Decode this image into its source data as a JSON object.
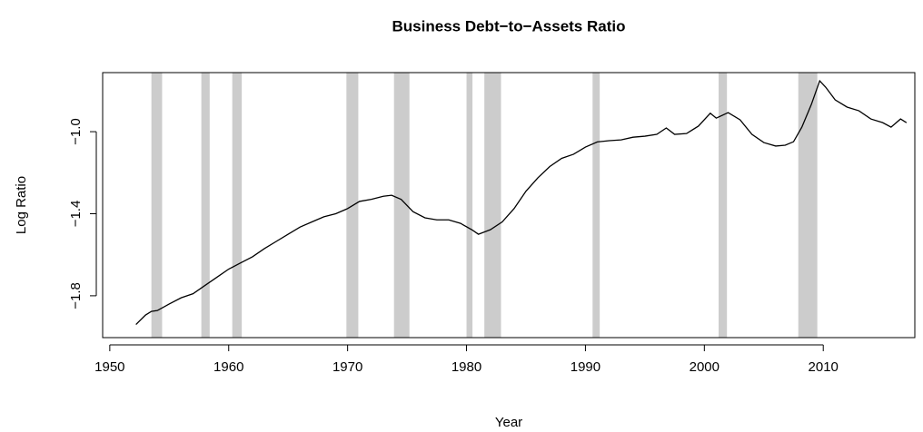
{
  "chart_data": {
    "type": "line",
    "title": "Business Debt−to−Assets Ratio",
    "x_label": "Year",
    "y_label": "Log Ratio",
    "xlim": [
      1949.4,
      2017.7
    ],
    "ylim": [
      -2.004,
      -0.712
    ],
    "xticks": [
      1950,
      1960,
      1970,
      1980,
      1990,
      2000,
      2010
    ],
    "yticks": [
      {
        "value": -1.8,
        "label": "−1.8"
      },
      {
        "value": -1.4,
        "label": "−1.4"
      },
      {
        "value": -1.0,
        "label": "−1.0"
      }
    ],
    "recessions": [
      [
        1953.5,
        1954.4
      ],
      [
        1957.7,
        1958.4
      ],
      [
        1960.3,
        1961.1
      ],
      [
        1969.9,
        1970.9
      ],
      [
        1973.9,
        1975.2
      ],
      [
        1980.0,
        1980.5
      ],
      [
        1981.5,
        1982.9
      ],
      [
        1990.6,
        1991.2
      ],
      [
        2001.2,
        2001.9
      ],
      [
        2007.9,
        2009.5
      ]
    ],
    "recession_color": "#cccccc",
    "x": [
      1952.2,
      1953,
      1953.5,
      1954,
      1955,
      1956,
      1957,
      1958,
      1959,
      1960,
      1961,
      1962,
      1963,
      1964,
      1965,
      1966,
      1967,
      1968,
      1969,
      1970,
      1971,
      1972,
      1973,
      1973.7,
      1974.5,
      1975.5,
      1976.5,
      1977.5,
      1978.5,
      1979.5,
      1980.5,
      1981,
      1982,
      1983,
      1984,
      1985,
      1986,
      1987,
      1988,
      1989,
      1990,
      1991,
      1992,
      1993,
      1994,
      1995,
      1996,
      1996.8,
      1997.5,
      1998.5,
      1999.5,
      2000.5,
      2001,
      2002,
      2003,
      2004,
      2005,
      2006,
      2006.8,
      2007.5,
      2008.2,
      2009,
      2009.7,
      2010.2,
      2011,
      2012,
      2013,
      2014,
      2015,
      2015.7,
      2016.5,
      2017
    ],
    "series": [
      {
        "name": "Log Ratio",
        "color": "#000000",
        "values": [
          -1.94,
          -1.894,
          -1.876,
          -1.872,
          -1.84,
          -1.81,
          -1.79,
          -1.75,
          -1.71,
          -1.67,
          -1.64,
          -1.61,
          -1.57,
          -1.535,
          -1.5,
          -1.465,
          -1.44,
          -1.415,
          -1.4,
          -1.375,
          -1.34,
          -1.33,
          -1.315,
          -1.31,
          -1.33,
          -1.39,
          -1.42,
          -1.43,
          -1.43,
          -1.447,
          -1.48,
          -1.5,
          -1.478,
          -1.44,
          -1.375,
          -1.29,
          -1.225,
          -1.17,
          -1.13,
          -1.11,
          -1.075,
          -1.05,
          -1.044,
          -1.04,
          -1.027,
          -1.022,
          -1.013,
          -0.982,
          -1.013,
          -1.009,
          -0.973,
          -0.91,
          -0.934,
          -0.907,
          -0.942,
          -1.013,
          -1.053,
          -1.07,
          -1.066,
          -1.049,
          -0.978,
          -0.867,
          -0.752,
          -0.783,
          -0.845,
          -0.88,
          -0.898,
          -0.938,
          -0.956,
          -0.978,
          -0.938,
          -0.956
        ]
      }
    ]
  }
}
